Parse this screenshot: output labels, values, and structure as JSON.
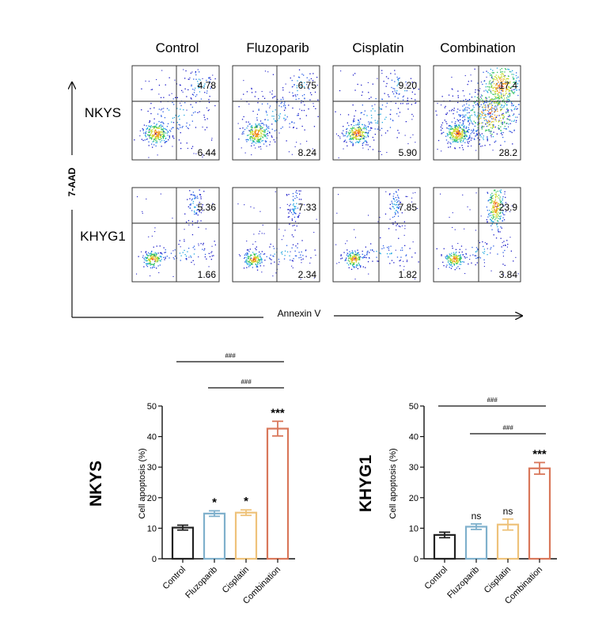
{
  "chart_data": [
    {
      "type": "scatter",
      "subtype": "flow-cytometry-quadrant-grid",
      "columns": [
        "Control",
        "Fluzoparib",
        "Cisplatin",
        "Combination"
      ],
      "rows": [
        "NKYS",
        "KHYG1"
      ],
      "xlabel": "Annexin V",
      "ylabel": "7-AAD",
      "quadrant_values": [
        [
          {
            "upper_right": "4.78",
            "lower_right": "6.44"
          },
          {
            "upper_right": "6.75",
            "lower_right": "8.24"
          },
          {
            "upper_right": "9.20",
            "lower_right": "5.90"
          },
          {
            "upper_right": "17.4",
            "lower_right": "28.2"
          }
        ],
        [
          {
            "upper_right": "5.36",
            "lower_right": "1.66"
          },
          {
            "upper_right": "7.33",
            "lower_right": "2.34"
          },
          {
            "upper_right": "7.85",
            "lower_right": "1.82"
          },
          {
            "upper_right": "23.9",
            "lower_right": "3.84"
          }
        ]
      ]
    },
    {
      "type": "bar",
      "title": "NKYS",
      "ylabel": "Cell apoptosis (%)",
      "ylim": [
        0,
        50
      ],
      "yticks": [
        0,
        10,
        20,
        30,
        40,
        50
      ],
      "categories": [
        "Control",
        "Fluzoparib",
        "Cisplatin",
        "Combination"
      ],
      "values": [
        10.2,
        14.8,
        15.1,
        42.6
      ],
      "errors": [
        0.8,
        0.9,
        0.9,
        2.4
      ],
      "colors": [
        "#222222",
        "#7fb0cc",
        "#eec27a",
        "#d9775a"
      ],
      "significance": [
        "",
        "*",
        "*",
        "***"
      ],
      "comparisons": [
        {
          "from": "Control",
          "to": "Combination",
          "label": "###"
        },
        {
          "from": "Fluzoparib",
          "to": "Combination",
          "label": "###"
        }
      ]
    },
    {
      "type": "bar",
      "title": "KHYG1",
      "ylabel": "Cell apoptosis (%)",
      "ylim": [
        0,
        50
      ],
      "yticks": [
        0,
        10,
        20,
        30,
        40,
        50
      ],
      "categories": [
        "Control",
        "Fluzoparib",
        "Cisplatin",
        "Combination"
      ],
      "values": [
        7.8,
        10.5,
        11.2,
        29.6
      ],
      "errors": [
        0.9,
        0.9,
        1.8,
        1.9
      ],
      "colors": [
        "#222222",
        "#7fb0cc",
        "#eec27a",
        "#d9775a"
      ],
      "significance": [
        "",
        "ns",
        "ns",
        "***"
      ],
      "comparisons": [
        {
          "from": "Control",
          "to": "Combination",
          "label": "###"
        },
        {
          "from": "Fluzoparib",
          "to": "Combination",
          "label": "###"
        }
      ]
    }
  ]
}
